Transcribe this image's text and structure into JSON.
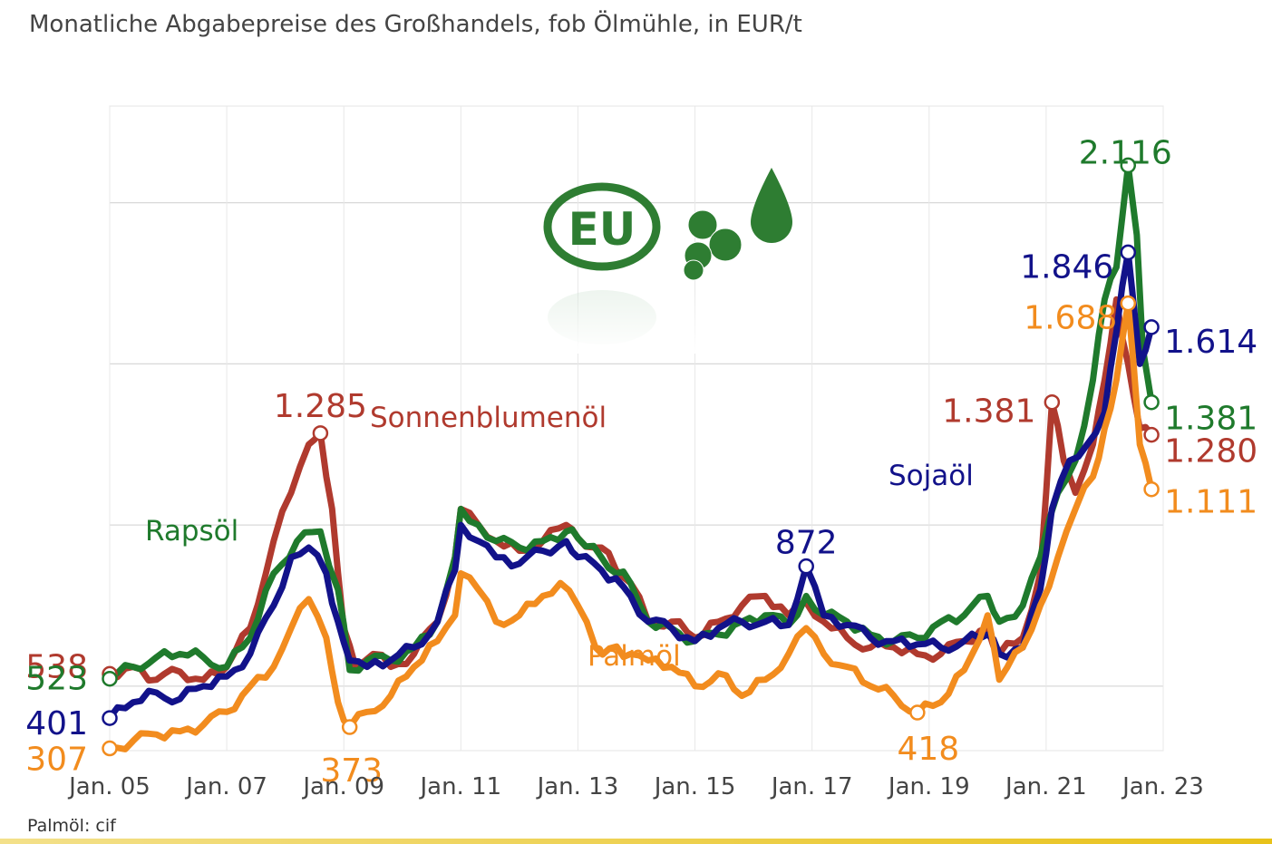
{
  "title": "Monatliche Abgabepreise des Großhandels, fob Ölmühle, in EUR/t",
  "source_note": "Palmöl: cif",
  "logo": {
    "text": "EU",
    "icons": [
      "flower-icon",
      "drop-icon"
    ]
  },
  "chart_data": {
    "type": "line",
    "title": "Monatliche Abgabepreise des Großhandels, fob Ölmühle, in EUR/t",
    "xlabel": "",
    "ylabel": "",
    "x_ticks": [
      "Jan. 05",
      "Jan. 07",
      "Jan. 09",
      "Jan. 11",
      "Jan. 13",
      "Jan. 15",
      "Jan. 17",
      "Jan. 19",
      "Jan. 21",
      "Jan. 23"
    ],
    "x_range": [
      2005.0,
      2023.0
    ],
    "ylim": [
      300,
      2300
    ],
    "gridlines_y": [
      500,
      1000,
      1500,
      2000
    ],
    "grid": "horizontal",
    "series": [
      {
        "name": "Sonnenblumenöl",
        "color": "#b03a2e",
        "points": [
          [
            2005.0,
            538
          ],
          [
            2005.4,
            560
          ],
          [
            2005.8,
            520
          ],
          [
            2006.2,
            545
          ],
          [
            2006.6,
            520
          ],
          [
            2007.0,
            560
          ],
          [
            2007.4,
            680
          ],
          [
            2007.8,
            950
          ],
          [
            2008.1,
            1100
          ],
          [
            2008.4,
            1250
          ],
          [
            2008.6,
            1285
          ],
          [
            2008.8,
            1050
          ],
          [
            2009.0,
            680
          ],
          [
            2009.2,
            560
          ],
          [
            2009.5,
            600
          ],
          [
            2009.8,
            560
          ],
          [
            2010.2,
            600
          ],
          [
            2010.6,
            700
          ],
          [
            2010.9,
            900
          ],
          [
            2011.0,
            1050
          ],
          [
            2011.3,
            1000
          ],
          [
            2011.6,
            950
          ],
          [
            2012.0,
            920
          ],
          [
            2012.4,
            950
          ],
          [
            2012.8,
            1000
          ],
          [
            2013.0,
            960
          ],
          [
            2013.4,
            930
          ],
          [
            2013.9,
            820
          ],
          [
            2014.2,
            700
          ],
          [
            2014.6,
            700
          ],
          [
            2015.0,
            650
          ],
          [
            2015.4,
            700
          ],
          [
            2015.8,
            750
          ],
          [
            2016.2,
            780
          ],
          [
            2016.6,
            720
          ],
          [
            2016.9,
            760
          ],
          [
            2017.2,
            700
          ],
          [
            2017.6,
            650
          ],
          [
            2018.0,
            620
          ],
          [
            2018.4,
            620
          ],
          [
            2018.8,
            600
          ],
          [
            2019.2,
            600
          ],
          [
            2019.6,
            640
          ],
          [
            2020.0,
            680
          ],
          [
            2020.2,
            600
          ],
          [
            2020.6,
            650
          ],
          [
            2020.9,
            850
          ],
          [
            2021.0,
            1100
          ],
          [
            2021.1,
            1381
          ],
          [
            2021.3,
            1200
          ],
          [
            2021.5,
            1100
          ],
          [
            2021.8,
            1250
          ],
          [
            2022.0,
            1450
          ],
          [
            2022.2,
            1700
          ],
          [
            2022.4,
            1500
          ],
          [
            2022.6,
            1300
          ],
          [
            2022.8,
            1280
          ]
        ]
      },
      {
        "name": "Rapsöl",
        "color": "#1f7a2c",
        "points": [
          [
            2005.0,
            523
          ],
          [
            2005.4,
            560
          ],
          [
            2005.8,
            590
          ],
          [
            2006.2,
            600
          ],
          [
            2006.6,
            590
          ],
          [
            2007.0,
            560
          ],
          [
            2007.4,
            650
          ],
          [
            2007.8,
            850
          ],
          [
            2008.2,
            950
          ],
          [
            2008.6,
            980
          ],
          [
            2008.9,
            800
          ],
          [
            2009.1,
            550
          ],
          [
            2009.4,
            580
          ],
          [
            2009.8,
            580
          ],
          [
            2010.2,
            620
          ],
          [
            2010.6,
            700
          ],
          [
            2010.9,
            900
          ],
          [
            2011.0,
            1050
          ],
          [
            2011.3,
            1000
          ],
          [
            2011.6,
            950
          ],
          [
            2012.0,
            930
          ],
          [
            2012.4,
            950
          ],
          [
            2012.8,
            980
          ],
          [
            2013.0,
            960
          ],
          [
            2013.4,
            900
          ],
          [
            2013.9,
            820
          ],
          [
            2014.2,
            700
          ],
          [
            2014.6,
            680
          ],
          [
            2015.0,
            640
          ],
          [
            2015.4,
            660
          ],
          [
            2015.8,
            700
          ],
          [
            2016.2,
            720
          ],
          [
            2016.6,
            690
          ],
          [
            2016.9,
            780
          ],
          [
            2017.2,
            720
          ],
          [
            2017.6,
            700
          ],
          [
            2018.0,
            660
          ],
          [
            2018.4,
            640
          ],
          [
            2018.8,
            650
          ],
          [
            2019.2,
            700
          ],
          [
            2019.6,
            720
          ],
          [
            2020.0,
            780
          ],
          [
            2020.2,
            700
          ],
          [
            2020.6,
            750
          ],
          [
            2020.9,
            900
          ],
          [
            2021.2,
            1100
          ],
          [
            2021.5,
            1200
          ],
          [
            2021.8,
            1450
          ],
          [
            2022.0,
            1700
          ],
          [
            2022.2,
            1800
          ],
          [
            2022.4,
            2116
          ],
          [
            2022.55,
            1900
          ],
          [
            2022.65,
            1550
          ],
          [
            2022.8,
            1381
          ]
        ]
      },
      {
        "name": "Sojaöl",
        "color": "#12128a",
        "points": [
          [
            2005.0,
            401
          ],
          [
            2005.4,
            450
          ],
          [
            2005.8,
            480
          ],
          [
            2006.2,
            460
          ],
          [
            2006.6,
            500
          ],
          [
            2007.0,
            530
          ],
          [
            2007.4,
            600
          ],
          [
            2007.8,
            750
          ],
          [
            2008.1,
            900
          ],
          [
            2008.4,
            930
          ],
          [
            2008.7,
            850
          ],
          [
            2008.9,
            700
          ],
          [
            2009.1,
            580
          ],
          [
            2009.4,
            560
          ],
          [
            2009.8,
            580
          ],
          [
            2010.2,
            620
          ],
          [
            2010.6,
            700
          ],
          [
            2010.9,
            860
          ],
          [
            2011.0,
            1000
          ],
          [
            2011.3,
            950
          ],
          [
            2011.6,
            900
          ],
          [
            2012.0,
            880
          ],
          [
            2012.4,
            920
          ],
          [
            2012.8,
            950
          ],
          [
            2013.0,
            900
          ],
          [
            2013.4,
            860
          ],
          [
            2013.9,
            780
          ],
          [
            2014.2,
            700
          ],
          [
            2014.6,
            680
          ],
          [
            2015.0,
            640
          ],
          [
            2015.4,
            680
          ],
          [
            2015.8,
            700
          ],
          [
            2016.2,
            700
          ],
          [
            2016.6,
            690
          ],
          [
            2016.9,
            872
          ],
          [
            2017.2,
            720
          ],
          [
            2017.6,
            690
          ],
          [
            2018.0,
            650
          ],
          [
            2018.4,
            640
          ],
          [
            2018.8,
            630
          ],
          [
            2019.2,
            620
          ],
          [
            2019.6,
            640
          ],
          [
            2020.0,
            660
          ],
          [
            2020.2,
            600
          ],
          [
            2020.6,
            620
          ],
          [
            2020.9,
            800
          ],
          [
            2021.1,
            1050
          ],
          [
            2021.4,
            1200
          ],
          [
            2021.7,
            1250
          ],
          [
            2022.0,
            1350
          ],
          [
            2022.2,
            1600
          ],
          [
            2022.4,
            1846
          ],
          [
            2022.6,
            1500
          ],
          [
            2022.8,
            1614
          ]
        ]
      },
      {
        "name": "Palmöl",
        "color": "#f28c1e",
        "points": [
          [
            2005.0,
            307
          ],
          [
            2005.4,
            330
          ],
          [
            2005.8,
            350
          ],
          [
            2006.2,
            360
          ],
          [
            2006.6,
            380
          ],
          [
            2007.0,
            420
          ],
          [
            2007.4,
            500
          ],
          [
            2007.8,
            560
          ],
          [
            2008.1,
            680
          ],
          [
            2008.4,
            770
          ],
          [
            2008.7,
            650
          ],
          [
            2008.9,
            450
          ],
          [
            2009.1,
            373
          ],
          [
            2009.4,
            420
          ],
          [
            2009.8,
            470
          ],
          [
            2010.2,
            560
          ],
          [
            2010.6,
            640
          ],
          [
            2010.9,
            720
          ],
          [
            2011.0,
            850
          ],
          [
            2011.3,
            800
          ],
          [
            2011.6,
            700
          ],
          [
            2012.0,
            720
          ],
          [
            2012.4,
            780
          ],
          [
            2012.7,
            820
          ],
          [
            2013.0,
            750
          ],
          [
            2013.3,
            620
          ],
          [
            2013.9,
            600
          ],
          [
            2014.2,
            580
          ],
          [
            2014.6,
            560
          ],
          [
            2015.0,
            500
          ],
          [
            2015.4,
            540
          ],
          [
            2015.8,
            470
          ],
          [
            2016.2,
            520
          ],
          [
            2016.6,
            600
          ],
          [
            2016.9,
            680
          ],
          [
            2017.2,
            600
          ],
          [
            2017.6,
            560
          ],
          [
            2018.0,
            500
          ],
          [
            2018.4,
            470
          ],
          [
            2018.8,
            418
          ],
          [
            2019.2,
            450
          ],
          [
            2019.6,
            550
          ],
          [
            2020.0,
            720
          ],
          [
            2020.2,
            520
          ],
          [
            2020.6,
            620
          ],
          [
            2020.9,
            750
          ],
          [
            2021.2,
            900
          ],
          [
            2021.5,
            1050
          ],
          [
            2021.8,
            1150
          ],
          [
            2022.0,
            1300
          ],
          [
            2022.2,
            1450
          ],
          [
            2022.4,
            1688
          ],
          [
            2022.6,
            1250
          ],
          [
            2022.8,
            1111
          ]
        ]
      }
    ],
    "series_labels": [
      {
        "series": "Rapsöl",
        "text": "Rapsöl"
      },
      {
        "series": "Sonnenblumenöl",
        "text": "Sonnenblumenöl"
      },
      {
        "series": "Sojaöl",
        "text": "Sojaöl"
      },
      {
        "series": "Palmöl",
        "text": "Palmöl"
      }
    ],
    "annotations": [
      {
        "series": "Sonnenblumenöl",
        "x": 2005.0,
        "y": 538,
        "label": "538"
      },
      {
        "series": "Rapsöl",
        "x": 2005.0,
        "y": 523,
        "label": "523"
      },
      {
        "series": "Sojaöl",
        "x": 2005.0,
        "y": 401,
        "label": "401"
      },
      {
        "series": "Palmöl",
        "x": 2005.0,
        "y": 307,
        "label": "307"
      },
      {
        "series": "Sonnenblumenöl",
        "x": 2008.6,
        "y": 1285,
        "label": "1.285"
      },
      {
        "series": "Palmöl",
        "x": 2009.1,
        "y": 373,
        "label": "373"
      },
      {
        "series": "Sojaöl",
        "x": 2016.9,
        "y": 872,
        "label": "872"
      },
      {
        "series": "Palmöl",
        "x": 2018.8,
        "y": 418,
        "label": "418"
      },
      {
        "series": "Sonnenblumenöl",
        "x": 2021.1,
        "y": 1381,
        "label": "1.381"
      },
      {
        "series": "Rapsöl",
        "x": 2022.4,
        "y": 2116,
        "label": "2.116"
      },
      {
        "series": "Sojaöl",
        "x": 2022.4,
        "y": 1846,
        "label": "1.846"
      },
      {
        "series": "Palmöl",
        "x": 2022.4,
        "y": 1688,
        "label": "1.688"
      },
      {
        "series": "Sojaöl",
        "x": 2022.8,
        "y": 1614,
        "label": "1.614"
      },
      {
        "series": "Rapsöl",
        "x": 2022.8,
        "y": 1381,
        "label": "1.381"
      },
      {
        "series": "Sonnenblumenöl",
        "x": 2022.8,
        "y": 1280,
        "label": "1.280"
      },
      {
        "series": "Palmöl",
        "x": 2022.8,
        "y": 1111,
        "label": "1.111"
      }
    ]
  }
}
